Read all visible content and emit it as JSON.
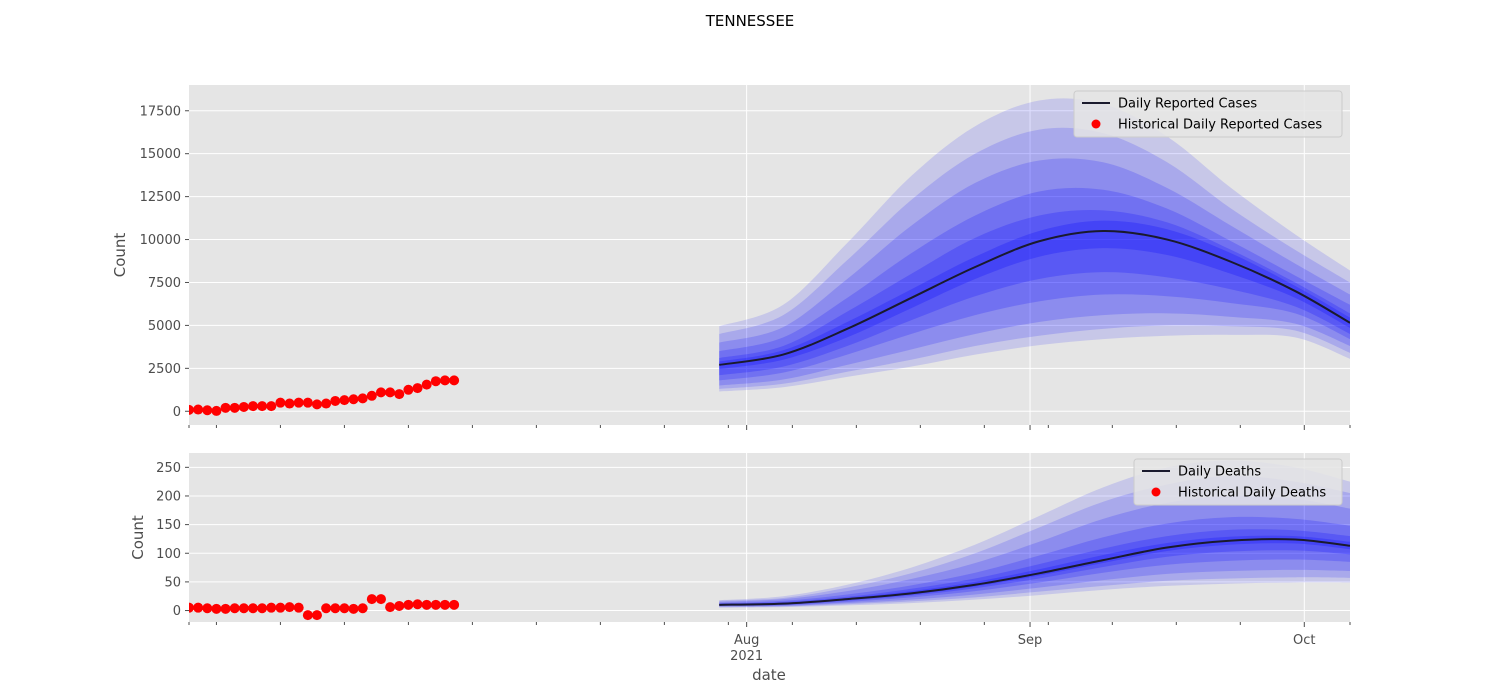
{
  "figure": {
    "suptitle": "TENNESSEE",
    "xlabel": "date"
  },
  "colors": {
    "background": "#e5e5e5",
    "grid": "#ffffff",
    "band": "#0000ff",
    "median": "#1a1a2e",
    "historical": "#ff0000"
  },
  "chart_data": [
    {
      "type": "line",
      "name": "cases",
      "ylabel": "Count",
      "ylim": [
        -800,
        19000
      ],
      "yticks": [
        0,
        2500,
        5000,
        7500,
        10000,
        12500,
        15000,
        17500
      ],
      "grid": true,
      "legend_position": "top-right",
      "forecast_dates": [
        "2021-07-29",
        "2021-08-05",
        "2021-08-12",
        "2021-08-19",
        "2021-08-26",
        "2021-09-02",
        "2021-09-09",
        "2021-09-16",
        "2021-09-23",
        "2021-09-30",
        "2021-10-06"
      ],
      "median": [
        2700,
        3300,
        4800,
        6600,
        8400,
        9900,
        10500,
        10000,
        8700,
        7000,
        5150
      ],
      "quantile_bands": [
        {
          "quantile": "0.025-0.975",
          "lower": [
            1150,
            1400,
            2000,
            2600,
            3300,
            3850,
            4200,
            4400,
            4450,
            4300,
            3050
          ],
          "upper": [
            4950,
            6200,
            9800,
            13700,
            16600,
            18100,
            17900,
            16000,
            13000,
            10300,
            8200
          ]
        },
        {
          "quantile": "0.05-0.95",
          "lower": [
            1300,
            1600,
            2300,
            3000,
            3800,
            4400,
            4800,
            5000,
            4950,
            4700,
            3400
          ],
          "upper": [
            4500,
            5600,
            8800,
            12300,
            15000,
            16400,
            16200,
            14500,
            11800,
            9400,
            7500
          ]
        },
        {
          "quantile": "0.10-0.90",
          "lower": [
            1500,
            1850,
            2700,
            3600,
            4500,
            5200,
            5600,
            5700,
            5500,
            5100,
            3800
          ],
          "upper": [
            4000,
            4900,
            7700,
            10800,
            13300,
            14600,
            14500,
            13000,
            10800,
            8600,
            6800
          ]
        },
        {
          "quantile": "0.20-0.80",
          "lower": [
            1800,
            2250,
            3300,
            4500,
            5600,
            6400,
            6800,
            6700,
            6300,
            5700,
            4200
          ],
          "upper": [
            3500,
            4300,
            6600,
            9200,
            11400,
            12800,
            12900,
            11800,
            9900,
            7900,
            6200
          ]
        },
        {
          "quantile": "0.30-0.70",
          "lower": [
            2100,
            2600,
            3800,
            5300,
            6700,
            7700,
            8100,
            7800,
            7100,
            6100,
            4500
          ],
          "upper": [
            3100,
            3800,
            5800,
            8000,
            10100,
            11400,
            11700,
            11000,
            9400,
            7500,
            5700
          ]
        },
        {
          "quantile": "0.40-0.60",
          "lower": [
            2450,
            3000,
            4300,
            6000,
            7700,
            9000,
            9500,
            9100,
            8000,
            6600,
            4850
          ],
          "upper": [
            2900,
            3550,
            5200,
            7100,
            9000,
            10500,
            11100,
            10600,
            9200,
            7300,
            5450
          ]
        }
      ],
      "historical_dates": [
        "2021-06-01",
        "2021-06-02",
        "2021-06-03",
        "2021-06-04",
        "2021-06-05",
        "2021-06-06",
        "2021-06-07",
        "2021-06-08",
        "2021-06-09",
        "2021-06-10",
        "2021-06-11",
        "2021-06-12",
        "2021-06-13",
        "2021-06-14",
        "2021-06-15",
        "2021-06-16",
        "2021-06-17",
        "2021-06-18",
        "2021-06-19",
        "2021-06-20",
        "2021-06-21",
        "2021-06-22",
        "2021-06-23",
        "2021-06-24",
        "2021-06-25",
        "2021-06-26",
        "2021-06-27",
        "2021-06-28",
        "2021-06-29",
        "2021-06-30"
      ],
      "historical_values": [
        80,
        100,
        60,
        20,
        200,
        200,
        250,
        300,
        300,
        300,
        500,
        450,
        500,
        500,
        400,
        450,
        600,
        650,
        700,
        750,
        900,
        1100,
        1100,
        1000,
        1250,
        1350,
        1550,
        1750,
        1800,
        1800
      ],
      "legend": [
        "Daily Reported Cases",
        "Historical Daily Reported Cases"
      ]
    },
    {
      "type": "line",
      "name": "deaths",
      "ylabel": "Count",
      "ylim": [
        -20,
        275
      ],
      "yticks": [
        0,
        50,
        100,
        150,
        200,
        250
      ],
      "grid": true,
      "legend_position": "top-right",
      "forecast_dates": [
        "2021-07-29",
        "2021-08-05",
        "2021-08-12",
        "2021-08-19",
        "2021-08-26",
        "2021-09-02",
        "2021-09-09",
        "2021-09-16",
        "2021-09-23",
        "2021-09-30",
        "2021-10-06"
      ],
      "median": [
        10,
        12,
        20,
        30,
        45,
        65,
        88,
        110,
        122,
        124,
        113
      ],
      "quantile_bands": [
        {
          "quantile": "0.025-0.975",
          "lower": [
            5,
            6,
            9,
            13,
            19,
            27,
            36,
            43,
            47,
            49,
            49
          ],
          "upper": [
            18,
            25,
            45,
            75,
            115,
            165,
            215,
            250,
            262,
            250,
            225
          ]
        },
        {
          "quantile": "0.05-0.95",
          "lower": [
            6,
            7,
            11,
            16,
            23,
            33,
            43,
            52,
            56,
            58,
            57
          ],
          "upper": [
            17,
            22,
            40,
            65,
            100,
            145,
            190,
            220,
            235,
            225,
            205
          ]
        },
        {
          "quantile": "0.10-0.90",
          "lower": [
            7,
            8,
            13,
            19,
            28,
            40,
            53,
            64,
            69,
            71,
            69
          ],
          "upper": [
            15,
            20,
            34,
            55,
            83,
            120,
            160,
            188,
            200,
            195,
            178
          ]
        },
        {
          "quantile": "0.20-0.80",
          "lower": [
            8,
            9,
            15,
            23,
            34,
            49,
            66,
            80,
            87,
            89,
            85
          ],
          "upper": [
            13,
            17,
            28,
            44,
            66,
            96,
            128,
            152,
            163,
            160,
            148
          ]
        },
        {
          "quantile": "0.30-0.70",
          "lower": [
            9,
            10,
            17,
            26,
            39,
            56,
            76,
            94,
            103,
            105,
            98
          ],
          "upper": [
            12,
            15,
            24,
            38,
            56,
            81,
            108,
            130,
            141,
            140,
            130
          ]
        },
        {
          "quantile": "0.40-0.60",
          "lower": [
            9.5,
            11,
            19,
            28,
            42,
            61,
            83,
            104,
            115,
            117,
            107
          ],
          "upper": [
            11,
            13,
            22,
            34,
            50,
            72,
            97,
            118,
            129,
            130,
            120
          ]
        }
      ],
      "historical_dates": [
        "2021-06-01",
        "2021-06-02",
        "2021-06-03",
        "2021-06-04",
        "2021-06-05",
        "2021-06-06",
        "2021-06-07",
        "2021-06-08",
        "2021-06-09",
        "2021-06-10",
        "2021-06-11",
        "2021-06-12",
        "2021-06-13",
        "2021-06-14",
        "2021-06-15",
        "2021-06-16",
        "2021-06-17",
        "2021-06-18",
        "2021-06-19",
        "2021-06-20",
        "2021-06-21",
        "2021-06-22",
        "2021-06-23",
        "2021-06-24",
        "2021-06-25",
        "2021-06-26",
        "2021-06-27",
        "2021-06-28",
        "2021-06-29",
        "2021-06-30"
      ],
      "historical_values": [
        5,
        5,
        4,
        3,
        3,
        4,
        4,
        4,
        4,
        5,
        5,
        6,
        5,
        -8,
        -8,
        4,
        4,
        4,
        3,
        4,
        20,
        20,
        6,
        8,
        10,
        11,
        10,
        10,
        10,
        10
      ],
      "legend": [
        "Daily Deaths",
        "Historical Daily Deaths"
      ]
    }
  ],
  "x_axis": {
    "xlim": [
      "2021-06-01",
      "2021-10-06"
    ],
    "major_ticks": [
      {
        "date": "2021-08-01",
        "label": "Aug",
        "sublabel": "2021"
      },
      {
        "date": "2021-09-01",
        "label": "Sep",
        "sublabel": ""
      },
      {
        "date": "2021-10-01",
        "label": "Oct",
        "sublabel": ""
      }
    ],
    "minor_tick_dates": [
      "2021-06-01",
      "2021-06-04",
      "2021-06-11",
      "2021-06-18",
      "2021-06-25",
      "2021-07-02",
      "2021-07-09",
      "2021-07-16",
      "2021-07-23",
      "2021-07-30",
      "2021-08-06",
      "2021-08-13",
      "2021-08-20",
      "2021-08-27",
      "2021-09-03",
      "2021-09-10",
      "2021-09-17",
      "2021-09-24",
      "2021-10-06"
    ]
  }
}
